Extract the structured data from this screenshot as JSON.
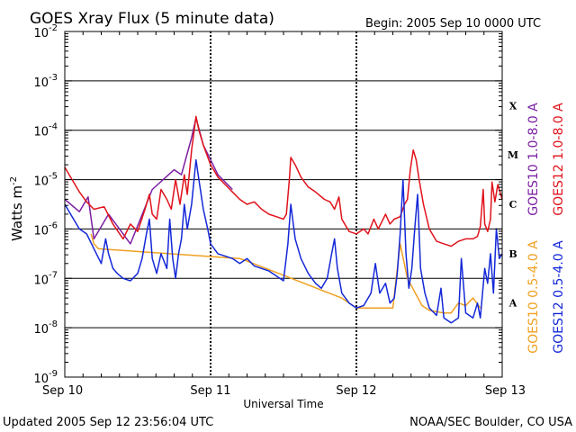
{
  "chart_data": {
    "type": "line",
    "title": "GOES Xray Flux (5 minute data)",
    "begin_label": "Begin:  2005 Sep 10 0000 UTC",
    "xlabel": "Universal Time",
    "ylabel": "Watts m",
    "ylabel_sup": "-2",
    "x_ticks": [
      {
        "t": 0,
        "label": "Sep 10"
      },
      {
        "t": 1,
        "label": "Sep 11"
      },
      {
        "t": 2,
        "label": "Sep 12"
      },
      {
        "t": 3,
        "label": "Sep 13"
      }
    ],
    "x_range": [
      0,
      3
    ],
    "y_scale": "log",
    "y_range_exp": [
      -9,
      -2
    ],
    "y_ticks": [
      {
        "exp": -2,
        "label": "10",
        "sup": "-2"
      },
      {
        "exp": -3,
        "label": "10",
        "sup": "-3"
      },
      {
        "exp": -4,
        "label": "10",
        "sup": "-4"
      },
      {
        "exp": -5,
        "label": "10",
        "sup": "-5"
      },
      {
        "exp": -6,
        "label": "10",
        "sup": "-6"
      },
      {
        "exp": -7,
        "label": "10",
        "sup": "-7"
      },
      {
        "exp": -8,
        "label": "10",
        "sup": "-8"
      },
      {
        "exp": -9,
        "label": "10",
        "sup": "-9"
      }
    ],
    "flare_classes": [
      {
        "label": "X",
        "exp": -3.5
      },
      {
        "label": "M",
        "exp": -4.5
      },
      {
        "label": "C",
        "exp": -5.5
      },
      {
        "label": "B",
        "exp": -6.5
      },
      {
        "label": "A",
        "exp": -7.5
      }
    ],
    "series": [
      {
        "name": "GOES10 1.0-8.0 A",
        "color": "#7b1fa2",
        "points": [
          [
            0,
            -5.4
          ],
          [
            0.1,
            -5.65
          ],
          [
            0.16,
            -5.35
          ],
          [
            0.2,
            -6.2
          ],
          [
            0.3,
            -5.7
          ],
          [
            0.45,
            -6.3
          ],
          [
            0.6,
            -5.2
          ],
          [
            0.75,
            -4.8
          ],
          [
            0.8,
            -4.9
          ],
          [
            0.87,
            -4.15
          ],
          [
            0.9,
            -3.75
          ],
          [
            0.95,
            -4.3
          ],
          [
            1.05,
            -4.9
          ],
          [
            1.15,
            -5.2
          ]
        ]
      },
      {
        "name": "GOES12 1.0-8.0 A",
        "color": "#e0121b",
        "points": [
          [
            0,
            -4.75
          ],
          [
            0.05,
            -5.0
          ],
          [
            0.1,
            -5.25
          ],
          [
            0.15,
            -5.45
          ],
          [
            0.2,
            -5.6
          ],
          [
            0.27,
            -5.55
          ],
          [
            0.33,
            -5.9
          ],
          [
            0.4,
            -6.2
          ],
          [
            0.45,
            -5.9
          ],
          [
            0.5,
            -6.05
          ],
          [
            0.55,
            -5.6
          ],
          [
            0.58,
            -5.3
          ],
          [
            0.6,
            -5.7
          ],
          [
            0.63,
            -5.8
          ],
          [
            0.66,
            -5.2
          ],
          [
            0.7,
            -5.4
          ],
          [
            0.73,
            -5.6
          ],
          [
            0.76,
            -5.0
          ],
          [
            0.79,
            -5.5
          ],
          [
            0.82,
            -4.9
          ],
          [
            0.84,
            -5.3
          ],
          [
            0.87,
            -4.4
          ],
          [
            0.9,
            -3.72
          ],
          [
            0.92,
            -4.0
          ],
          [
            0.95,
            -4.3
          ],
          [
            1.0,
            -4.7
          ],
          [
            1.05,
            -4.95
          ],
          [
            1.1,
            -5.1
          ],
          [
            1.15,
            -5.25
          ],
          [
            1.2,
            -5.4
          ],
          [
            1.25,
            -5.5
          ],
          [
            1.3,
            -5.45
          ],
          [
            1.35,
            -5.6
          ],
          [
            1.4,
            -5.7
          ],
          [
            1.45,
            -5.75
          ],
          [
            1.5,
            -5.8
          ],
          [
            1.52,
            -5.7
          ],
          [
            1.54,
            -5.0
          ],
          [
            1.55,
            -4.55
          ],
          [
            1.58,
            -4.7
          ],
          [
            1.62,
            -4.95
          ],
          [
            1.67,
            -5.15
          ],
          [
            1.72,
            -5.25
          ],
          [
            1.78,
            -5.4
          ],
          [
            1.82,
            -5.45
          ],
          [
            1.85,
            -5.6
          ],
          [
            1.88,
            -5.35
          ],
          [
            1.9,
            -5.8
          ],
          [
            1.95,
            -6.05
          ],
          [
            2.0,
            -6.1
          ],
          [
            2.05,
            -6.0
          ],
          [
            2.08,
            -6.1
          ],
          [
            2.12,
            -5.8
          ],
          [
            2.15,
            -6.0
          ],
          [
            2.2,
            -5.7
          ],
          [
            2.23,
            -5.9
          ],
          [
            2.26,
            -5.8
          ],
          [
            2.3,
            -5.75
          ],
          [
            2.33,
            -5.5
          ],
          [
            2.35,
            -5.4
          ],
          [
            2.37,
            -4.8
          ],
          [
            2.39,
            -4.4
          ],
          [
            2.41,
            -4.6
          ],
          [
            2.43,
            -5.0
          ],
          [
            2.46,
            -5.5
          ],
          [
            2.5,
            -6.0
          ],
          [
            2.55,
            -6.25
          ],
          [
            2.6,
            -6.3
          ],
          [
            2.65,
            -6.35
          ],
          [
            2.7,
            -6.25
          ],
          [
            2.75,
            -6.2
          ],
          [
            2.8,
            -6.2
          ],
          [
            2.83,
            -6.15
          ],
          [
            2.85,
            -5.95
          ],
          [
            2.87,
            -5.2
          ],
          [
            2.88,
            -5.9
          ],
          [
            2.9,
            -6.05
          ],
          [
            2.92,
            -5.8
          ],
          [
            2.93,
            -5.05
          ],
          [
            2.95,
            -5.45
          ],
          [
            2.97,
            -5.1
          ],
          [
            3.0,
            -5.4
          ]
        ]
      },
      {
        "name": "GOES10 0.5-4.0 A",
        "color": "#f0a020",
        "points": [
          [
            0.18,
            -6.1
          ],
          [
            0.2,
            -6.3
          ],
          [
            0.23,
            -6.4
          ],
          [
            1.2,
            -6.6
          ],
          [
            1.25,
            -6.65
          ],
          [
            1.9,
            -7.4
          ],
          [
            2.0,
            -7.6
          ],
          [
            2.25,
            -7.6
          ],
          [
            2.3,
            -6.3
          ],
          [
            2.35,
            -7.0
          ],
          [
            2.45,
            -7.55
          ],
          [
            2.5,
            -7.65
          ],
          [
            2.6,
            -7.7
          ],
          [
            2.65,
            -7.7
          ],
          [
            2.7,
            -7.5
          ],
          [
            2.75,
            -7.55
          ],
          [
            2.8,
            -7.4
          ],
          [
            2.85,
            -7.6
          ]
        ]
      },
      {
        "name": "GOES12 0.5-4.0 A",
        "color": "#1428d8",
        "points": [
          [
            0,
            -5.5
          ],
          [
            0.05,
            -5.75
          ],
          [
            0.1,
            -6.0
          ],
          [
            0.15,
            -6.1
          ],
          [
            0.2,
            -6.4
          ],
          [
            0.25,
            -6.7
          ],
          [
            0.28,
            -6.2
          ],
          [
            0.3,
            -6.5
          ],
          [
            0.33,
            -6.8
          ],
          [
            0.36,
            -6.9
          ],
          [
            0.4,
            -7.0
          ],
          [
            0.45,
            -7.05
          ],
          [
            0.5,
            -6.9
          ],
          [
            0.53,
            -6.6
          ],
          [
            0.56,
            -6.1
          ],
          [
            0.58,
            -5.8
          ],
          [
            0.6,
            -6.6
          ],
          [
            0.63,
            -6.9
          ],
          [
            0.66,
            -6.5
          ],
          [
            0.7,
            -6.8
          ],
          [
            0.72,
            -5.8
          ],
          [
            0.74,
            -6.6
          ],
          [
            0.76,
            -7.0
          ],
          [
            0.78,
            -6.5
          ],
          [
            0.8,
            -6.2
          ],
          [
            0.82,
            -5.5
          ],
          [
            0.84,
            -6.0
          ],
          [
            0.87,
            -5.5
          ],
          [
            0.9,
            -4.6
          ],
          [
            0.92,
            -5.0
          ],
          [
            0.95,
            -5.6
          ],
          [
            0.98,
            -6.0
          ],
          [
            1.0,
            -6.3
          ],
          [
            1.05,
            -6.5
          ],
          [
            1.1,
            -6.55
          ],
          [
            1.15,
            -6.6
          ],
          [
            1.2,
            -6.7
          ],
          [
            1.25,
            -6.6
          ],
          [
            1.3,
            -6.75
          ],
          [
            1.35,
            -6.8
          ],
          [
            1.4,
            -6.85
          ],
          [
            1.45,
            -6.95
          ],
          [
            1.5,
            -7.05
          ],
          [
            1.53,
            -6.3
          ],
          [
            1.55,
            -5.5
          ],
          [
            1.58,
            -6.2
          ],
          [
            1.62,
            -6.6
          ],
          [
            1.67,
            -6.9
          ],
          [
            1.72,
            -7.1
          ],
          [
            1.76,
            -7.2
          ],
          [
            1.8,
            -7.0
          ],
          [
            1.83,
            -6.5
          ],
          [
            1.85,
            -6.2
          ],
          [
            1.87,
            -6.8
          ],
          [
            1.9,
            -7.3
          ],
          [
            1.95,
            -7.5
          ],
          [
            2.0,
            -7.6
          ],
          [
            2.05,
            -7.55
          ],
          [
            2.1,
            -7.3
          ],
          [
            2.13,
            -6.7
          ],
          [
            2.16,
            -7.3
          ],
          [
            2.2,
            -7.1
          ],
          [
            2.23,
            -7.5
          ],
          [
            2.26,
            -7.4
          ],
          [
            2.28,
            -6.9
          ],
          [
            2.3,
            -6.1
          ],
          [
            2.32,
            -5.0
          ],
          [
            2.34,
            -6.5
          ],
          [
            2.36,
            -7.2
          ],
          [
            2.38,
            -6.8
          ],
          [
            2.4,
            -6.0
          ],
          [
            2.42,
            -5.3
          ],
          [
            2.44,
            -6.8
          ],
          [
            2.47,
            -7.3
          ],
          [
            2.5,
            -7.6
          ],
          [
            2.55,
            -7.75
          ],
          [
            2.58,
            -7.2
          ],
          [
            2.6,
            -7.8
          ],
          [
            2.65,
            -7.9
          ],
          [
            2.7,
            -7.8
          ],
          [
            2.72,
            -6.6
          ],
          [
            2.75,
            -7.7
          ],
          [
            2.8,
            -7.8
          ],
          [
            2.83,
            -7.5
          ],
          [
            2.85,
            -7.8
          ],
          [
            2.88,
            -6.8
          ],
          [
            2.9,
            -7.1
          ],
          [
            2.92,
            -6.5
          ],
          [
            2.94,
            -7.3
          ],
          [
            2.96,
            -6.0
          ],
          [
            2.98,
            -6.6
          ],
          [
            3.0,
            -6.5
          ]
        ]
      }
    ]
  },
  "footer": {
    "updated": "Updated 2005 Sep 12 23:56:04 UTC",
    "source": "NOAA/SEC Boulder, CO USA"
  }
}
